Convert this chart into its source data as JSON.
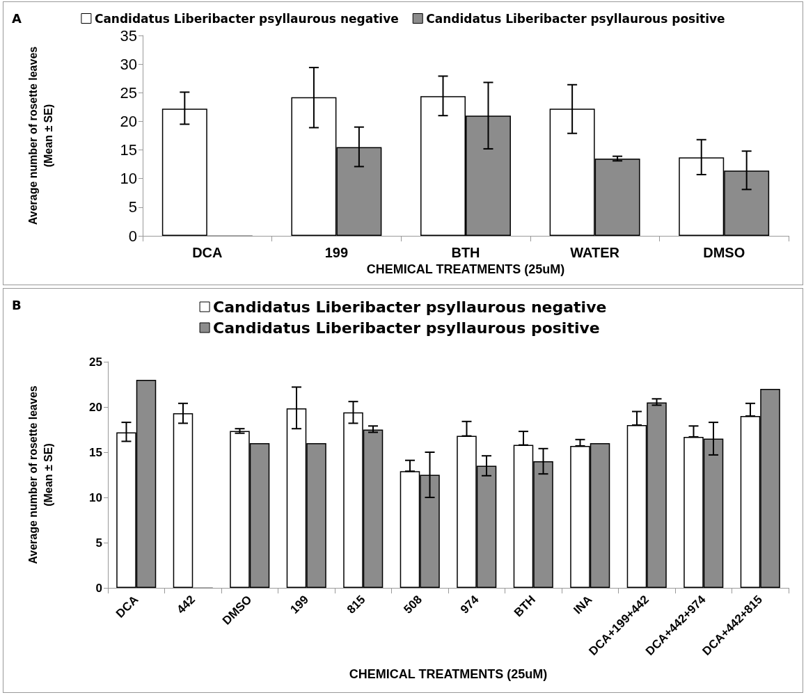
{
  "chart_data": [
    {
      "type": "bar",
      "annotations": [
        "A"
      ],
      "xlabel": "CHEMICAL TREATMENTS (25uM)",
      "ylabel": "Average number of rosette leaves\n(Mean ± SE)",
      "categories": [
        "DCA",
        "199",
        "BTH",
        "WATER",
        "DMSO"
      ],
      "ylim": [
        0,
        35
      ],
      "yticks": [
        0,
        5,
        10,
        15,
        20,
        25,
        30,
        35
      ],
      "grid": false,
      "legend": "top",
      "series": [
        {
          "name": "Candidatus Liberibacter psyllaurous negative",
          "color": "#ffffff",
          "values": [
            22.2,
            24.2,
            24.4,
            22.2,
            13.7
          ],
          "errors": [
            [
              19.5,
              25.1
            ],
            [
              18.9,
              29.4
            ],
            [
              21.0,
              27.9
            ],
            [
              17.9,
              26.4
            ],
            [
              10.7,
              16.8
            ]
          ]
        },
        {
          "name": "Candidatus Liberibacter psyllaurous positive",
          "color": "#8c8c8c",
          "values": [
            0,
            15.5,
            21.0,
            13.5,
            11.4
          ],
          "errors": [
            null,
            [
              12.1,
              19.0
            ],
            [
              15.2,
              26.8
            ],
            [
              13.1,
              13.9
            ],
            [
              8.1,
              14.8
            ]
          ]
        }
      ]
    },
    {
      "type": "bar",
      "annotations": [
        "B"
      ],
      "xlabel": "CHEMICAL TREATMENTS (25uM)",
      "ylabel": "Average number of rosette leaves\n(Mean ± SE)",
      "categories": [
        "DCA",
        "442",
        "DMSO",
        "199",
        "815",
        "508",
        "974",
        "BTH",
        "INA",
        "DCA+199+442",
        "DCA+442+974",
        "DCA+442+815"
      ],
      "ylim": [
        0,
        25
      ],
      "yticks": [
        0,
        5,
        10,
        15,
        20,
        25
      ],
      "grid": false,
      "legend": "top",
      "series": [
        {
          "name": "Candidatus Liberibacter psyllaurous negative",
          "color": "#ffffff",
          "values": [
            17.2,
            19.3,
            17.35,
            19.85,
            19.4,
            12.9,
            16.8,
            15.8,
            15.7,
            18.0,
            16.7,
            19.0
          ],
          "errors": [
            [
              16.2,
              18.3
            ],
            [
              18.2,
              20.4
            ],
            [
              17.1,
              17.6
            ],
            [
              17.6,
              22.2
            ],
            [
              18.2,
              20.6
            ],
            [
              12.9,
              14.1
            ],
            [
              16.8,
              18.4
            ],
            [
              15.8,
              17.3
            ],
            [
              15.7,
              16.4
            ],
            [
              18.0,
              19.5
            ],
            [
              16.7,
              17.9
            ],
            [
              19.0,
              20.4
            ]
          ]
        },
        {
          "name": "Candidatus Liberibacter psyllaurous positive",
          "color": "#8c8c8c",
          "values": [
            23.0,
            0,
            16.0,
            16.0,
            17.5,
            12.5,
            13.5,
            14.0,
            16.0,
            20.5,
            16.5,
            22.0
          ],
          "errors": [
            null,
            null,
            null,
            null,
            [
              17.2,
              17.9
            ],
            [
              10.0,
              15.0
            ],
            [
              12.4,
              14.6
            ],
            [
              12.6,
              15.4
            ],
            null,
            [
              20.2,
              20.9
            ],
            [
              14.7,
              18.3
            ],
            null
          ]
        }
      ]
    }
  ]
}
